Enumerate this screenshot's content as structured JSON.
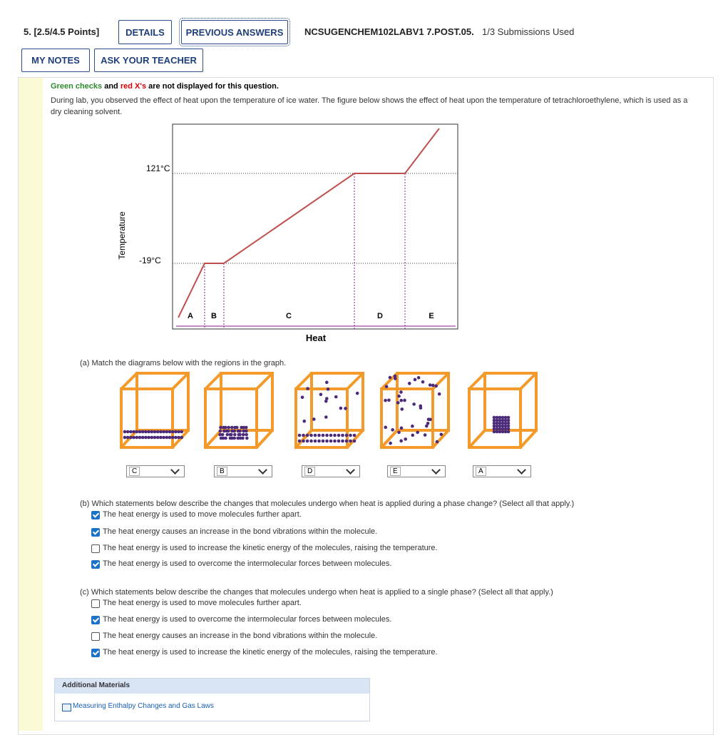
{
  "header": {
    "points": "5. [2.5/4.5 Points]",
    "buttons": [
      "DETAILS",
      "PREVIOUS ANSWERS",
      "MY NOTES",
      "ASK YOUR TEACHER"
    ],
    "question_id": "NCSUGENCHEM102LABV1 7.POST.05.",
    "submissions": "1/3 Submissions Used"
  },
  "notice": {
    "green": "Green checks",
    "and": "and",
    "red": "red X's",
    "rest": "are not displayed for this question."
  },
  "intro": "During lab, you observed the effect of heat upon the temperature of ice water. The figure below shows the effect of heat upon the temperature of tetrachloroethylene, which is used as a dry cleaning solvent.",
  "figure": {
    "y_label": "Temperature",
    "x_label": "Heat",
    "temps": [
      "121°C",
      "-19°C"
    ],
    "regions": [
      "A",
      "B",
      "C",
      "D",
      "E"
    ]
  },
  "part_a": {
    "prompt": "(a) Match the diagrams below with the regions in the graph.",
    "answers": [
      "C",
      "B",
      "D",
      "E",
      "A"
    ]
  },
  "part_b": {
    "prompt": "(b) Which statements below describe the changes that molecules undergo when heat is applied during a phase change? (Select all that apply.)",
    "options": [
      {
        "text": "The heat energy is used to move molecules further apart.",
        "checked": true
      },
      {
        "text": "The heat energy causes an increase in the bond vibrations within the molecule.",
        "checked": true
      },
      {
        "text": "The heat energy is used to increase the kinetic energy of the molecules, raising the temperature.",
        "checked": false
      },
      {
        "text": "The heat energy is used to overcome the intermolecular forces between molecules.",
        "checked": true
      }
    ]
  },
  "part_c": {
    "prompt": "(c) Which statements below describe the changes that molecules undergo when heat is applied to a single phase? (Select all that apply.)",
    "options": [
      {
        "text": "The heat energy is used to move molecules further apart.",
        "checked": false
      },
      {
        "text": "The heat energy is used to overcome the intermolecular forces between molecules.",
        "checked": true
      },
      {
        "text": "The heat energy causes an increase in the bond vibrations within the molecule.",
        "checked": false
      },
      {
        "text": "The heat energy is used to increase the kinetic energy of the molecules, raising the temperature.",
        "checked": true
      }
    ]
  },
  "additional": {
    "title": "Additional Materials",
    "link": "Measuring Enthalpy Changes and Gas Laws"
  }
}
